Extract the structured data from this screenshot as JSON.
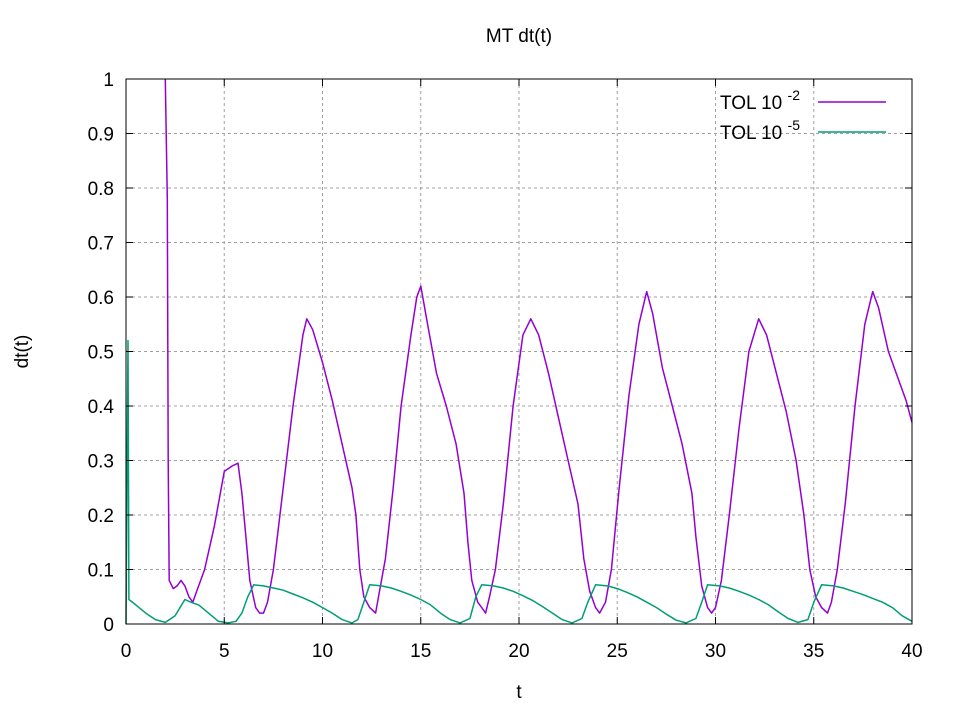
{
  "chart_data": {
    "type": "line",
    "title": "MT dt(t)",
    "xlabel": "t",
    "ylabel": "dt(t)",
    "xlim": [
      0,
      40
    ],
    "ylim": [
      0,
      1
    ],
    "xticks": [
      0,
      5,
      10,
      15,
      20,
      25,
      30,
      35,
      40
    ],
    "yticks": [
      0,
      0.1,
      0.2,
      0.3,
      0.4,
      0.5,
      0.6,
      0.7,
      0.8,
      0.9,
      1
    ],
    "grid": true,
    "legend_position": "top-right",
    "series": [
      {
        "name_base": "TOL 10",
        "name_exp": "-2",
        "color": "#9400d3",
        "points": [
          [
            2.0,
            1.0
          ],
          [
            2.1,
            0.78
          ],
          [
            2.15,
            0.3
          ],
          [
            2.2,
            0.08
          ],
          [
            2.4,
            0.065
          ],
          [
            2.6,
            0.07
          ],
          [
            2.8,
            0.08
          ],
          [
            3.0,
            0.07
          ],
          [
            3.2,
            0.05
          ],
          [
            3.4,
            0.04
          ],
          [
            3.6,
            0.06
          ],
          [
            4.0,
            0.1
          ],
          [
            4.5,
            0.18
          ],
          [
            5.0,
            0.28
          ],
          [
            5.4,
            0.29
          ],
          [
            5.7,
            0.295
          ],
          [
            5.9,
            0.24
          ],
          [
            6.1,
            0.16
          ],
          [
            6.3,
            0.08
          ],
          [
            6.6,
            0.03
          ],
          [
            6.8,
            0.02
          ],
          [
            7.0,
            0.02
          ],
          [
            7.2,
            0.04
          ],
          [
            7.5,
            0.1
          ],
          [
            8.0,
            0.25
          ],
          [
            8.5,
            0.4
          ],
          [
            9.0,
            0.53
          ],
          [
            9.2,
            0.56
          ],
          [
            9.5,
            0.54
          ],
          [
            10.0,
            0.48
          ],
          [
            10.5,
            0.41
          ],
          [
            11.0,
            0.33
          ],
          [
            11.5,
            0.25
          ],
          [
            11.7,
            0.2
          ],
          [
            11.9,
            0.1
          ],
          [
            12.1,
            0.05
          ],
          [
            12.4,
            0.03
          ],
          [
            12.7,
            0.02
          ],
          [
            12.9,
            0.06
          ],
          [
            13.2,
            0.12
          ],
          [
            13.6,
            0.25
          ],
          [
            14.0,
            0.4
          ],
          [
            14.5,
            0.53
          ],
          [
            14.8,
            0.6
          ],
          [
            15.0,
            0.62
          ],
          [
            15.3,
            0.56
          ],
          [
            15.8,
            0.46
          ],
          [
            16.3,
            0.4
          ],
          [
            16.8,
            0.33
          ],
          [
            17.2,
            0.24
          ],
          [
            17.4,
            0.15
          ],
          [
            17.6,
            0.08
          ],
          [
            17.9,
            0.04
          ],
          [
            18.1,
            0.03
          ],
          [
            18.3,
            0.02
          ],
          [
            18.5,
            0.05
          ],
          [
            18.8,
            0.1
          ],
          [
            19.2,
            0.22
          ],
          [
            19.7,
            0.4
          ],
          [
            20.2,
            0.53
          ],
          [
            20.6,
            0.56
          ],
          [
            21.0,
            0.53
          ],
          [
            21.5,
            0.46
          ],
          [
            22.0,
            0.38
          ],
          [
            22.5,
            0.3
          ],
          [
            23.0,
            0.22
          ],
          [
            23.3,
            0.12
          ],
          [
            23.6,
            0.06
          ],
          [
            23.9,
            0.03
          ],
          [
            24.1,
            0.02
          ],
          [
            24.4,
            0.04
          ],
          [
            24.7,
            0.1
          ],
          [
            25.1,
            0.25
          ],
          [
            25.6,
            0.42
          ],
          [
            26.1,
            0.55
          ],
          [
            26.5,
            0.61
          ],
          [
            26.8,
            0.57
          ],
          [
            27.3,
            0.47
          ],
          [
            27.8,
            0.4
          ],
          [
            28.3,
            0.33
          ],
          [
            28.8,
            0.24
          ],
          [
            29.0,
            0.16
          ],
          [
            29.3,
            0.07
          ],
          [
            29.6,
            0.03
          ],
          [
            29.8,
            0.02
          ],
          [
            30.0,
            0.03
          ],
          [
            30.3,
            0.08
          ],
          [
            30.7,
            0.2
          ],
          [
            31.2,
            0.36
          ],
          [
            31.7,
            0.5
          ],
          [
            32.2,
            0.56
          ],
          [
            32.6,
            0.53
          ],
          [
            33.1,
            0.46
          ],
          [
            33.6,
            0.39
          ],
          [
            34.1,
            0.3
          ],
          [
            34.5,
            0.2
          ],
          [
            34.8,
            0.1
          ],
          [
            35.1,
            0.05
          ],
          [
            35.4,
            0.03
          ],
          [
            35.7,
            0.02
          ],
          [
            35.9,
            0.04
          ],
          [
            36.2,
            0.1
          ],
          [
            36.6,
            0.22
          ],
          [
            37.1,
            0.4
          ],
          [
            37.6,
            0.55
          ],
          [
            38.0,
            0.61
          ],
          [
            38.3,
            0.58
          ],
          [
            38.8,
            0.5
          ],
          [
            39.3,
            0.45
          ],
          [
            39.7,
            0.41
          ],
          [
            40.0,
            0.37
          ]
        ]
      },
      {
        "name_base": "TOL 10",
        "name_exp": "-5",
        "color": "#009e73",
        "points": [
          [
            0.0,
            0.0
          ],
          [
            0.1,
            0.52
          ],
          [
            0.15,
            0.045
          ],
          [
            0.5,
            0.035
          ],
          [
            1.0,
            0.02
          ],
          [
            1.5,
            0.008
          ],
          [
            2.0,
            0.003
          ],
          [
            2.5,
            0.015
          ],
          [
            3.0,
            0.045
          ],
          [
            3.3,
            0.04
          ],
          [
            3.7,
            0.035
          ],
          [
            4.2,
            0.02
          ],
          [
            4.7,
            0.005
          ],
          [
            5.2,
            0.002
          ],
          [
            5.6,
            0.005
          ],
          [
            5.9,
            0.02
          ],
          [
            6.2,
            0.05
          ],
          [
            6.5,
            0.072
          ],
          [
            7.0,
            0.07
          ],
          [
            7.5,
            0.066
          ],
          [
            8.0,
            0.062
          ],
          [
            8.5,
            0.055
          ],
          [
            9.0,
            0.048
          ],
          [
            9.5,
            0.04
          ],
          [
            10.0,
            0.03
          ],
          [
            10.5,
            0.02
          ],
          [
            11.0,
            0.008
          ],
          [
            11.5,
            0.002
          ],
          [
            11.8,
            0.008
          ],
          [
            12.1,
            0.04
          ],
          [
            12.4,
            0.072
          ],
          [
            13.0,
            0.07
          ],
          [
            13.5,
            0.066
          ],
          [
            14.0,
            0.06
          ],
          [
            14.5,
            0.053
          ],
          [
            15.0,
            0.045
          ],
          [
            15.5,
            0.035
          ],
          [
            16.0,
            0.02
          ],
          [
            16.5,
            0.008
          ],
          [
            17.0,
            0.002
          ],
          [
            17.5,
            0.01
          ],
          [
            17.8,
            0.05
          ],
          [
            18.1,
            0.072
          ],
          [
            18.7,
            0.07
          ],
          [
            19.2,
            0.066
          ],
          [
            19.7,
            0.06
          ],
          [
            20.2,
            0.052
          ],
          [
            20.7,
            0.043
          ],
          [
            21.2,
            0.032
          ],
          [
            21.7,
            0.02
          ],
          [
            22.2,
            0.008
          ],
          [
            22.7,
            0.002
          ],
          [
            23.2,
            0.01
          ],
          [
            23.5,
            0.04
          ],
          [
            23.9,
            0.072
          ],
          [
            24.5,
            0.07
          ],
          [
            25.0,
            0.065
          ],
          [
            25.5,
            0.058
          ],
          [
            26.0,
            0.05
          ],
          [
            26.5,
            0.04
          ],
          [
            27.0,
            0.03
          ],
          [
            27.5,
            0.018
          ],
          [
            28.0,
            0.007
          ],
          [
            28.5,
            0.002
          ],
          [
            29.0,
            0.01
          ],
          [
            29.3,
            0.04
          ],
          [
            29.6,
            0.072
          ],
          [
            30.2,
            0.07
          ],
          [
            30.7,
            0.066
          ],
          [
            31.2,
            0.06
          ],
          [
            31.7,
            0.053
          ],
          [
            32.2,
            0.045
          ],
          [
            32.7,
            0.035
          ],
          [
            33.2,
            0.022
          ],
          [
            33.7,
            0.01
          ],
          [
            34.2,
            0.003
          ],
          [
            34.7,
            0.008
          ],
          [
            35.0,
            0.04
          ],
          [
            35.4,
            0.072
          ],
          [
            36.0,
            0.07
          ],
          [
            36.5,
            0.066
          ],
          [
            37.0,
            0.06
          ],
          [
            37.5,
            0.054
          ],
          [
            38.0,
            0.047
          ],
          [
            38.5,
            0.04
          ],
          [
            39.0,
            0.03
          ],
          [
            39.5,
            0.015
          ],
          [
            40.0,
            0.005
          ]
        ]
      }
    ]
  }
}
